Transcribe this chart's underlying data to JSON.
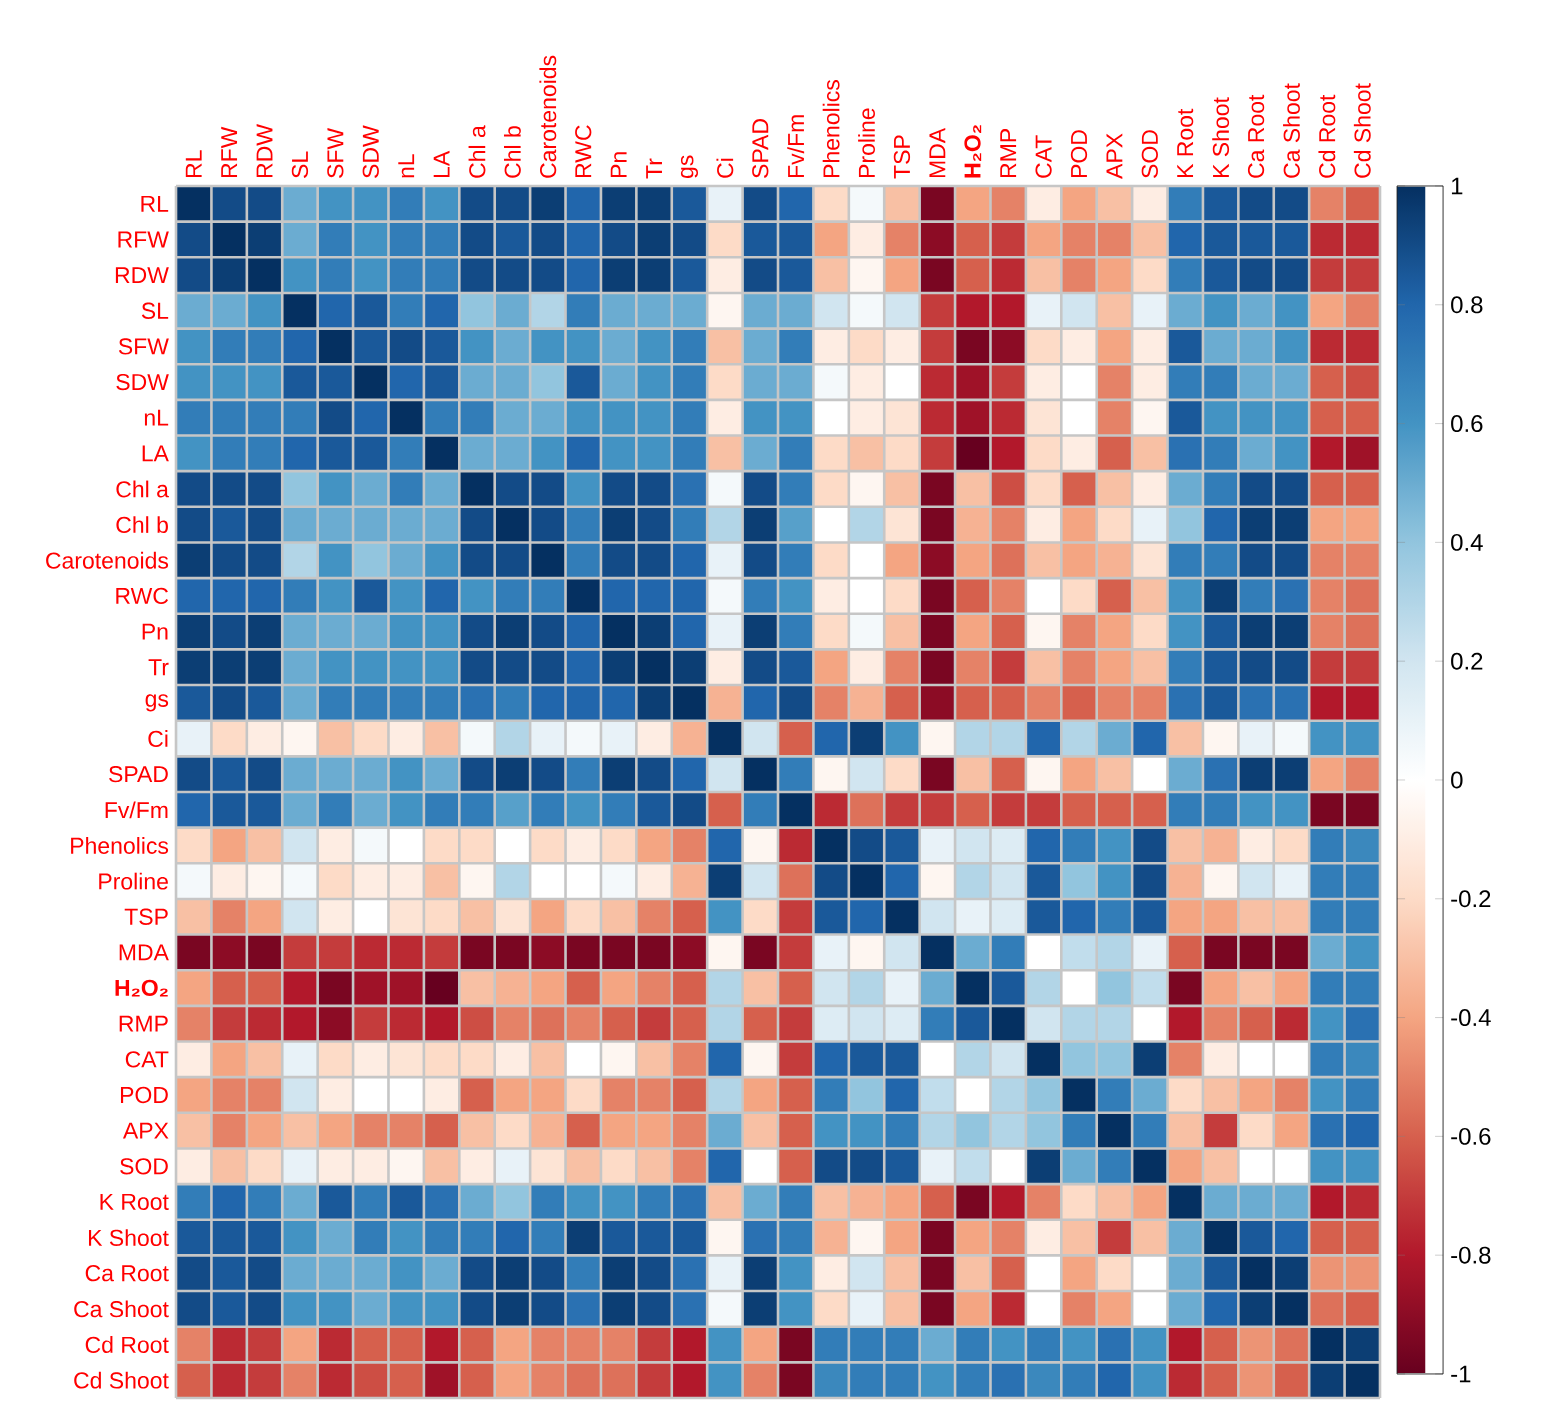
{
  "chart_data": {
    "type": "heatmap",
    "grid": true,
    "clim": [
      -1,
      1
    ],
    "cticks": [
      -1,
      -0.8,
      -0.6,
      -0.4,
      -0.2,
      0,
      0.2,
      0.4,
      0.6,
      0.8,
      1
    ],
    "categories": [
      "RL",
      "RFW",
      "RDW",
      "SL",
      "SFW",
      "SDW",
      "nL",
      "LA",
      "Chl a",
      "Chl b",
      "Carotenoids",
      "RWC",
      "Pn",
      "Tr",
      "gs",
      "Ci",
      "SPAD",
      "Fv/Fm",
      "Phenolics",
      "Proline",
      "TSP",
      "MDA",
      "**H₂O₂**",
      "RMP",
      "CAT",
      "POD",
      "APX",
      "SOD",
      "K Root",
      "K Shoot",
      "Ca Root",
      "Ca Shoot",
      "Cd Root",
      "Cd Shoot"
    ],
    "y_categories": [
      "RL",
      "RFW",
      "RDW",
      "SL",
      "SFW",
      "SDW",
      "nL",
      "LA",
      "Chl a",
      "Chl b",
      "Carotenoids",
      "RWC",
      "Pn",
      "Tr",
      "gs",
      "Ci",
      "SPAD",
      "Fv/Fm",
      "Phenolics",
      "Proline",
      "TSP",
      "MDA",
      "**H₂O₂**",
      "RMP",
      "CAT",
      "POD",
      "APX",
      "SOD",
      "K Root",
      "K Shoot",
      "Ca Root",
      "Ca Shoot",
      "Cd Root",
      "Cd Shoot"
    ],
    "cells": [
      [
        1,
        0.9,
        0.9,
        0.5,
        0.6,
        0.6,
        0.7,
        0.6,
        0.9,
        0.9,
        0.95,
        0.8,
        0.95,
        0.95,
        0.85,
        0.1,
        0.9,
        0.8,
        -0.2,
        0.05,
        -0.3,
        -0.95,
        -0.4,
        -0.5,
        -0.1,
        -0.4,
        -0.3,
        -0.1,
        0.7,
        0.85,
        0.9,
        0.9,
        -0.5,
        -0.6
      ],
      [
        0.9,
        1,
        0.95,
        0.5,
        0.7,
        0.6,
        0.7,
        0.7,
        0.9,
        0.85,
        0.9,
        0.8,
        0.9,
        0.95,
        0.9,
        -0.2,
        0.85,
        0.85,
        -0.4,
        -0.1,
        -0.5,
        -0.9,
        -0.6,
        -0.7,
        -0.4,
        -0.5,
        -0.5,
        -0.3,
        0.8,
        0.85,
        0.85,
        0.85,
        -0.75,
        -0.75
      ],
      [
        0.9,
        0.95,
        1,
        0.6,
        0.7,
        0.6,
        0.7,
        0.7,
        0.9,
        0.9,
        0.9,
        0.8,
        0.95,
        0.95,
        0.85,
        -0.1,
        0.9,
        0.85,
        -0.3,
        -0.05,
        -0.4,
        -0.95,
        -0.6,
        -0.75,
        -0.3,
        -0.5,
        -0.4,
        -0.2,
        0.7,
        0.85,
        0.9,
        0.9,
        -0.7,
        -0.7
      ],
      [
        0.5,
        0.5,
        0.6,
        1,
        0.8,
        0.85,
        0.7,
        0.8,
        0.4,
        0.5,
        0.3,
        0.7,
        0.5,
        0.5,
        0.5,
        -0.05,
        0.5,
        0.5,
        0.2,
        0.05,
        0.2,
        -0.7,
        -0.8,
        -0.8,
        0.1,
        0.2,
        -0.3,
        0.1,
        0.5,
        0.6,
        0.5,
        0.6,
        -0.4,
        -0.5
      ],
      [
        0.6,
        0.7,
        0.7,
        0.8,
        1,
        0.85,
        0.9,
        0.85,
        0.6,
        0.5,
        0.6,
        0.6,
        0.5,
        0.6,
        0.7,
        -0.3,
        0.5,
        0.7,
        -0.1,
        -0.2,
        -0.1,
        -0.7,
        -0.95,
        -0.9,
        -0.2,
        -0.1,
        -0.4,
        -0.1,
        0.85,
        0.5,
        0.5,
        0.6,
        -0.75,
        -0.75
      ],
      [
        0.6,
        0.6,
        0.6,
        0.85,
        0.85,
        1,
        0.8,
        0.85,
        0.5,
        0.5,
        0.4,
        0.85,
        0.5,
        0.6,
        0.7,
        -0.2,
        0.5,
        0.5,
        0.05,
        -0.1,
        0,
        -0.75,
        -0.85,
        -0.7,
        -0.1,
        0,
        -0.5,
        -0.1,
        0.7,
        0.7,
        0.5,
        0.5,
        -0.6,
        -0.65
      ],
      [
        0.7,
        0.7,
        0.7,
        0.7,
        0.9,
        0.8,
        1,
        0.7,
        0.7,
        0.5,
        0.5,
        0.6,
        0.6,
        0.6,
        0.7,
        -0.1,
        0.6,
        0.6,
        0,
        -0.1,
        -0.15,
        -0.75,
        -0.85,
        -0.75,
        -0.15,
        0,
        -0.5,
        -0.05,
        0.85,
        0.6,
        0.6,
        0.6,
        -0.6,
        -0.6
      ],
      [
        0.6,
        0.7,
        0.7,
        0.8,
        0.85,
        0.85,
        0.7,
        1,
        0.5,
        0.5,
        0.6,
        0.8,
        0.6,
        0.6,
        0.7,
        -0.3,
        0.5,
        0.7,
        -0.2,
        -0.3,
        -0.2,
        -0.7,
        -1,
        -0.8,
        -0.2,
        -0.1,
        -0.6,
        -0.3,
        0.75,
        0.7,
        0.5,
        0.6,
        -0.8,
        -0.85
      ],
      [
        0.9,
        0.9,
        0.9,
        0.4,
        0.6,
        0.5,
        0.7,
        0.5,
        1,
        0.9,
        0.9,
        0.6,
        0.9,
        0.9,
        0.75,
        0.05,
        0.9,
        0.7,
        -0.2,
        -0.05,
        -0.3,
        -0.95,
        -0.3,
        -0.65,
        -0.2,
        -0.6,
        -0.3,
        -0.1,
        0.5,
        0.7,
        0.9,
        0.9,
        -0.6,
        -0.6
      ],
      [
        0.9,
        0.85,
        0.9,
        0.5,
        0.5,
        0.5,
        0.5,
        0.5,
        0.9,
        1,
        0.9,
        0.7,
        0.95,
        0.9,
        0.7,
        0.3,
        0.95,
        0.55,
        0,
        0.3,
        -0.15,
        -0.95,
        -0.35,
        -0.5,
        -0.1,
        -0.4,
        -0.2,
        0.1,
        0.4,
        0.8,
        0.95,
        0.95,
        -0.4,
        -0.4
      ],
      [
        0.95,
        0.9,
        0.9,
        0.3,
        0.6,
        0.4,
        0.5,
        0.6,
        0.9,
        0.9,
        1,
        0.7,
        0.9,
        0.9,
        0.8,
        0.1,
        0.9,
        0.7,
        -0.2,
        0,
        -0.4,
        -0.9,
        -0.4,
        -0.55,
        -0.3,
        -0.4,
        -0.35,
        -0.15,
        0.7,
        0.7,
        0.9,
        0.9,
        -0.5,
        -0.5
      ],
      [
        0.8,
        0.8,
        0.8,
        0.7,
        0.6,
        0.85,
        0.6,
        0.8,
        0.6,
        0.7,
        0.7,
        1,
        0.8,
        0.8,
        0.8,
        0.05,
        0.7,
        0.6,
        -0.1,
        0,
        -0.2,
        -0.95,
        -0.6,
        -0.5,
        0,
        -0.2,
        -0.6,
        -0.3,
        0.6,
        0.95,
        0.7,
        0.75,
        -0.5,
        -0.55
      ],
      [
        0.95,
        0.9,
        0.95,
        0.5,
        0.5,
        0.5,
        0.6,
        0.6,
        0.9,
        0.95,
        0.9,
        0.8,
        1,
        0.95,
        0.8,
        0.1,
        0.95,
        0.7,
        -0.2,
        0.05,
        -0.3,
        -0.95,
        -0.4,
        -0.6,
        -0.05,
        -0.5,
        -0.4,
        -0.2,
        0.6,
        0.85,
        0.95,
        0.95,
        -0.5,
        -0.55
      ],
      [
        0.95,
        0.95,
        0.95,
        0.5,
        0.6,
        0.6,
        0.6,
        0.6,
        0.9,
        0.9,
        0.9,
        0.8,
        0.95,
        1,
        0.95,
        -0.1,
        0.9,
        0.85,
        -0.4,
        -0.1,
        -0.5,
        -0.95,
        -0.5,
        -0.7,
        -0.3,
        -0.5,
        -0.4,
        -0.3,
        0.7,
        0.85,
        0.9,
        0.9,
        -0.7,
        -0.7
      ],
      [
        0.85,
        0.9,
        0.85,
        0.5,
        0.7,
        0.7,
        0.7,
        0.7,
        0.75,
        0.7,
        0.8,
        0.8,
        0.8,
        0.95,
        1,
        -0.35,
        0.8,
        0.9,
        -0.5,
        -0.35,
        -0.6,
        -0.9,
        -0.6,
        -0.6,
        -0.5,
        -0.6,
        -0.5,
        -0.5,
        0.75,
        0.85,
        0.75,
        0.75,
        -0.8,
        -0.8
      ],
      [
        0.1,
        -0.2,
        -0.1,
        -0.05,
        -0.3,
        -0.2,
        -0.1,
        -0.3,
        0.05,
        0.3,
        0.1,
        0.05,
        0.1,
        -0.1,
        -0.35,
        1,
        0.2,
        -0.6,
        0.8,
        0.95,
        0.6,
        -0.05,
        0.3,
        0.3,
        0.8,
        0.3,
        0.5,
        0.8,
        -0.3,
        -0.05,
        0.1,
        0.05,
        0.6,
        0.6
      ],
      [
        0.9,
        0.85,
        0.9,
        0.5,
        0.5,
        0.5,
        0.6,
        0.5,
        0.9,
        0.95,
        0.9,
        0.7,
        0.95,
        0.9,
        0.8,
        0.2,
        1,
        0.7,
        -0.05,
        0.2,
        -0.2,
        -0.95,
        -0.3,
        -0.6,
        -0.05,
        -0.4,
        -0.3,
        0,
        0.5,
        0.75,
        0.95,
        0.95,
        -0.4,
        -0.5
      ],
      [
        0.8,
        0.85,
        0.85,
        0.5,
        0.7,
        0.5,
        0.6,
        0.7,
        0.7,
        0.55,
        0.7,
        0.6,
        0.7,
        0.85,
        0.9,
        -0.6,
        0.7,
        1,
        -0.75,
        -0.55,
        -0.7,
        -0.7,
        -0.6,
        -0.7,
        -0.7,
        -0.6,
        -0.6,
        -0.6,
        0.7,
        0.7,
        0.6,
        0.6,
        -0.95,
        -0.95
      ],
      [
        -0.2,
        -0.4,
        -0.3,
        0.2,
        -0.1,
        0.05,
        0,
        -0.2,
        -0.2,
        0,
        -0.2,
        -0.1,
        -0.2,
        -0.4,
        -0.5,
        0.8,
        -0.05,
        -0.75,
        1,
        0.9,
        0.85,
        0.1,
        0.2,
        0.15,
        0.8,
        0.7,
        0.6,
        0.9,
        -0.3,
        -0.35,
        -0.1,
        -0.2,
        0.7,
        0.65
      ],
      [
        0.05,
        -0.1,
        -0.05,
        0.05,
        -0.2,
        -0.1,
        -0.1,
        -0.3,
        -0.05,
        0.3,
        0,
        0,
        0.05,
        -0.1,
        -0.35,
        0.95,
        0.2,
        -0.55,
        0.9,
        1,
        0.8,
        -0.05,
        0.3,
        0.2,
        0.85,
        0.4,
        0.6,
        0.9,
        -0.35,
        -0.05,
        0.2,
        0.1,
        0.7,
        0.7
      ],
      [
        -0.3,
        -0.5,
        -0.4,
        0.2,
        -0.1,
        0,
        -0.15,
        -0.2,
        -0.3,
        -0.15,
        -0.4,
        -0.2,
        -0.3,
        -0.5,
        -0.6,
        0.6,
        -0.2,
        -0.7,
        0.85,
        0.8,
        1,
        0.2,
        0.1,
        0.15,
        0.85,
        0.8,
        0.7,
        0.85,
        -0.4,
        -0.4,
        -0.3,
        -0.3,
        0.7,
        0.7
      ],
      [
        -0.95,
        -0.9,
        -0.95,
        -0.7,
        -0.7,
        -0.75,
        -0.75,
        -0.7,
        -0.95,
        -0.95,
        -0.9,
        -0.95,
        -0.95,
        -0.95,
        -0.9,
        -0.05,
        -0.95,
        -0.7,
        0.1,
        -0.05,
        0.2,
        1,
        0.5,
        0.7,
        0,
        0.25,
        0.3,
        0.1,
        -0.6,
        -0.95,
        -0.95,
        -0.95,
        0.5,
        0.6
      ],
      [
        -0.4,
        -0.6,
        -0.6,
        -0.8,
        -0.95,
        -0.85,
        -0.85,
        -1,
        -0.3,
        -0.35,
        -0.4,
        -0.6,
        -0.4,
        -0.5,
        -0.6,
        0.3,
        -0.3,
        -0.6,
        0.2,
        0.3,
        0.1,
        0.5,
        1,
        0.85,
        0.3,
        0,
        0.4,
        0.25,
        -0.95,
        -0.4,
        -0.3,
        -0.4,
        0.7,
        0.7
      ],
      [
        -0.5,
        -0.7,
        -0.75,
        -0.8,
        -0.9,
        -0.7,
        -0.75,
        -0.8,
        -0.65,
        -0.5,
        -0.55,
        -0.5,
        -0.6,
        -0.7,
        -0.6,
        0.3,
        -0.6,
        -0.7,
        0.15,
        0.2,
        0.15,
        0.7,
        0.85,
        1,
        0.2,
        0.3,
        0.3,
        0,
        -0.8,
        -0.5,
        -0.6,
        -0.75,
        0.6,
        0.75
      ],
      [
        -0.1,
        -0.4,
        -0.3,
        0.1,
        -0.2,
        -0.1,
        -0.15,
        -0.2,
        -0.2,
        -0.1,
        -0.3,
        0,
        -0.05,
        -0.3,
        -0.5,
        0.8,
        -0.05,
        -0.7,
        0.8,
        0.85,
        0.85,
        0,
        0.3,
        0.2,
        1,
        0.4,
        0.4,
        0.95,
        -0.5,
        -0.1,
        0,
        0,
        0.7,
        0.65
      ],
      [
        -0.4,
        -0.5,
        -0.5,
        0.2,
        -0.1,
        0,
        0,
        -0.1,
        -0.6,
        -0.4,
        -0.4,
        -0.2,
        -0.5,
        -0.5,
        -0.6,
        0.3,
        -0.4,
        -0.6,
        0.7,
        0.4,
        0.8,
        0.25,
        0,
        0.3,
        0.4,
        1,
        0.7,
        0.5,
        -0.2,
        -0.3,
        -0.4,
        -0.5,
        0.6,
        0.7
      ],
      [
        -0.3,
        -0.5,
        -0.4,
        -0.3,
        -0.4,
        -0.5,
        -0.5,
        -0.6,
        -0.3,
        -0.2,
        -0.35,
        -0.6,
        -0.4,
        -0.4,
        -0.5,
        0.5,
        -0.3,
        -0.6,
        0.6,
        0.6,
        0.7,
        0.3,
        0.4,
        0.3,
        0.4,
        0.7,
        1,
        0.7,
        -0.3,
        -0.7,
        -0.2,
        -0.4,
        0.75,
        0.8
      ],
      [
        -0.1,
        -0.3,
        -0.2,
        0.1,
        -0.1,
        -0.1,
        -0.05,
        -0.3,
        -0.1,
        0.1,
        -0.15,
        -0.3,
        -0.2,
        -0.3,
        -0.5,
        0.8,
        0,
        -0.6,
        0.9,
        0.9,
        0.85,
        0.1,
        0.25,
        0,
        0.95,
        0.5,
        0.7,
        1,
        -0.4,
        -0.3,
        0,
        0,
        0.6,
        0.6
      ],
      [
        0.7,
        0.8,
        0.7,
        0.5,
        0.85,
        0.7,
        0.85,
        0.75,
        0.5,
        0.4,
        0.7,
        0.6,
        0.6,
        0.7,
        0.75,
        -0.3,
        0.5,
        0.7,
        -0.3,
        -0.35,
        -0.4,
        -0.6,
        -0.95,
        -0.8,
        -0.5,
        -0.2,
        -0.3,
        -0.4,
        1,
        0.5,
        0.5,
        0.5,
        -0.8,
        -0.75
      ],
      [
        0.85,
        0.85,
        0.85,
        0.6,
        0.5,
        0.7,
        0.6,
        0.7,
        0.7,
        0.8,
        0.7,
        0.95,
        0.85,
        0.85,
        0.85,
        -0.05,
        0.75,
        0.7,
        -0.35,
        -0.05,
        -0.4,
        -0.95,
        -0.4,
        -0.5,
        -0.1,
        -0.3,
        -0.7,
        -0.3,
        0.5,
        1,
        0.85,
        0.8,
        -0.6,
        -0.6
      ],
      [
        0.9,
        0.85,
        0.9,
        0.5,
        0.5,
        0.5,
        0.6,
        0.5,
        0.9,
        0.95,
        0.9,
        0.7,
        0.95,
        0.9,
        0.75,
        0.1,
        0.95,
        0.6,
        -0.1,
        0.2,
        -0.3,
        -0.95,
        -0.3,
        -0.6,
        0,
        -0.4,
        -0.2,
        0,
        0.5,
        0.85,
        1,
        0.95,
        -0.45,
        -0.45
      ],
      [
        0.9,
        0.85,
        0.9,
        0.6,
        0.6,
        0.5,
        0.6,
        0.6,
        0.9,
        0.95,
        0.9,
        0.75,
        0.95,
        0.9,
        0.75,
        0.05,
        0.95,
        0.6,
        -0.2,
        0.1,
        -0.3,
        -0.95,
        -0.4,
        -0.75,
        0,
        -0.5,
        -0.4,
        0,
        0.5,
        0.8,
        0.95,
        1,
        -0.55,
        -0.6
      ],
      [
        -0.5,
        -0.75,
        -0.7,
        -0.4,
        -0.75,
        -0.6,
        -0.6,
        -0.8,
        -0.6,
        -0.4,
        -0.5,
        -0.5,
        -0.5,
        -0.7,
        -0.8,
        0.6,
        -0.4,
        -0.95,
        0.7,
        0.7,
        0.7,
        0.5,
        0.7,
        0.6,
        0.7,
        0.6,
        0.75,
        0.6,
        -0.8,
        -0.6,
        -0.45,
        -0.55,
        1,
        0.95
      ],
      [
        -0.6,
        -0.75,
        -0.7,
        -0.5,
        -0.75,
        -0.65,
        -0.6,
        -0.85,
        -0.6,
        -0.4,
        -0.5,
        -0.55,
        -0.55,
        -0.7,
        -0.8,
        0.6,
        -0.5,
        -0.95,
        0.65,
        0.7,
        0.7,
        0.6,
        0.7,
        0.75,
        0.65,
        0.7,
        0.8,
        0.6,
        -0.75,
        -0.6,
        -0.45,
        -0.6,
        0.95,
        1
      ]
    ]
  }
}
